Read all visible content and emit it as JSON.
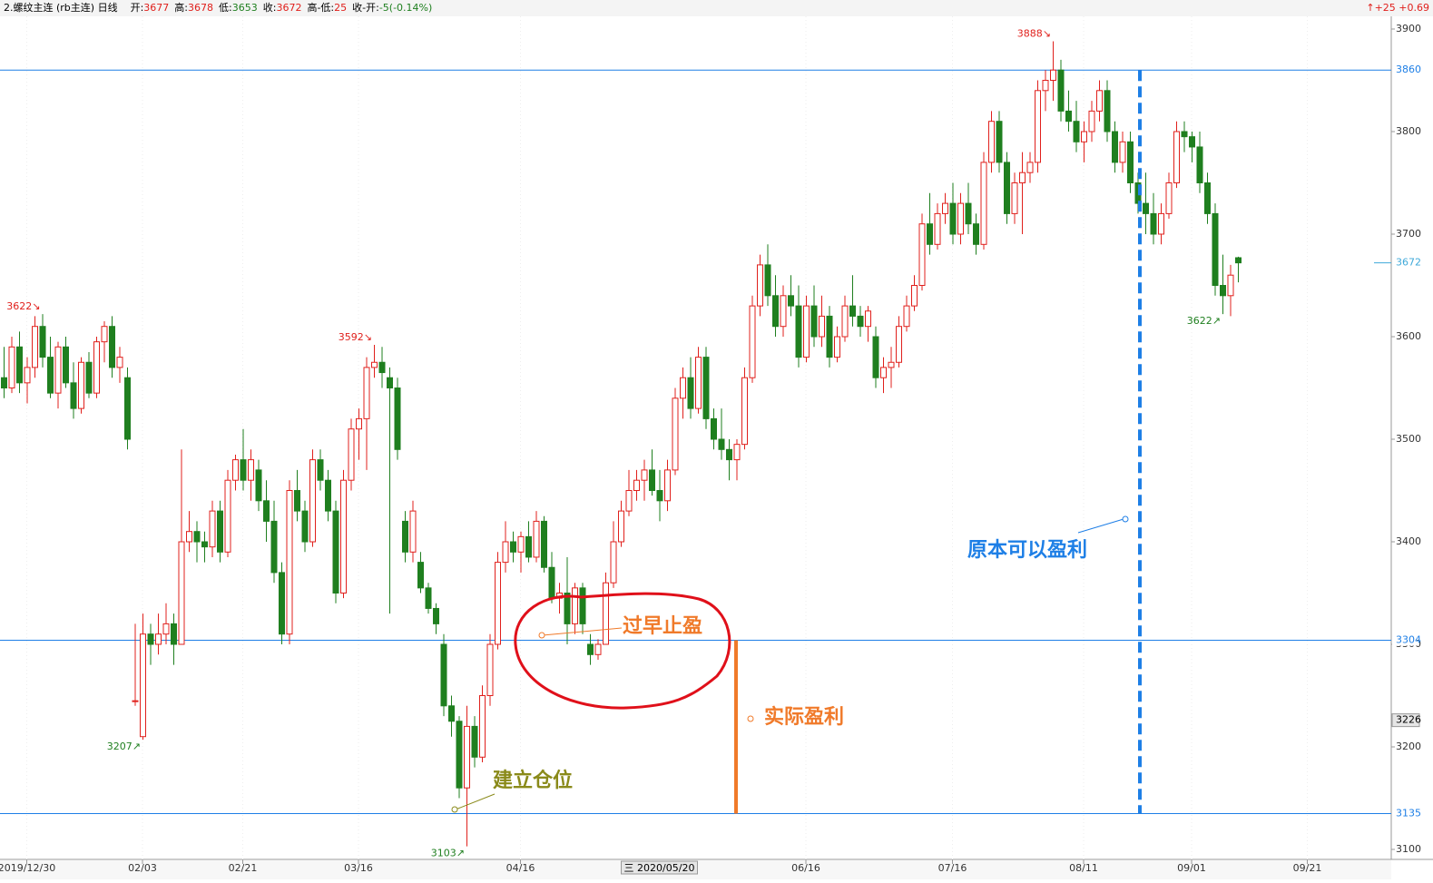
{
  "chart_data": {
    "type": "candlestick",
    "header": {
      "symbol": "2.螺纹主连 (rb主连) 日线",
      "fields": [
        {
          "label": "开:",
          "value": 3677
        },
        {
          "label": "高:",
          "value": 3678
        },
        {
          "label": "低:",
          "value": 3653
        },
        {
          "label": "收:",
          "value": 3672
        },
        {
          "label": "高-低:",
          "value": 25
        },
        {
          "label": "收-开:",
          "value": "-5(-0.14%)"
        }
      ],
      "right": "↑+25 +0.69"
    },
    "up_color": "#e0201c",
    "down_color": "#1f7f1f",
    "ylim": [
      3100,
      3900
    ],
    "yticks": [
      3100,
      3200,
      3300,
      3400,
      3500,
      3600,
      3700,
      3800,
      3900
    ],
    "xlim": [
      0,
      179
    ],
    "xticks": [
      {
        "value": 3,
        "label": "2019/12/30"
      },
      {
        "value": 18,
        "label": "02/03"
      },
      {
        "value": 31,
        "label": "02/21"
      },
      {
        "value": 46,
        "label": "03/16"
      },
      {
        "value": 67,
        "label": "04/16"
      },
      {
        "value": 104,
        "label": "06/16"
      },
      {
        "value": 123,
        "label": "07/16"
      },
      {
        "value": 140,
        "label": "08/11"
      },
      {
        "value": 154,
        "label": "09/01"
      },
      {
        "value": 169,
        "label": "09/21"
      }
    ],
    "cursor": {
      "value": 85,
      "label": "三 2020/05/20"
    },
    "hlines": [
      3860,
      3304,
      3135
    ],
    "hline_color": "#1e7fe6",
    "last_price": 3672,
    "marker_price": 3226,
    "extremes": [
      {
        "x": 5,
        "value": 3622,
        "label": "3622↘",
        "kind": "high"
      },
      {
        "x": 18,
        "value": 3207,
        "label": "3207↗",
        "kind": "low"
      },
      {
        "x": 48,
        "value": 3592,
        "label": "3592↘",
        "kind": "high"
      },
      {
        "x": 60,
        "value": 3103,
        "label": "3103↗",
        "kind": "low"
      },
      {
        "x": 136,
        "value": 3888,
        "label": "3888↘",
        "kind": "high"
      },
      {
        "x": 158,
        "value": 3622,
        "label": "3622↗",
        "kind": "low"
      }
    ],
    "annotations": {
      "early": "过早止盈",
      "actual": "实际盈利",
      "entry": "建立仓位",
      "potential": "原本可以盈利"
    },
    "ohlc": [
      [
        3560,
        3590,
        3540,
        3550
      ],
      [
        3550,
        3600,
        3545,
        3590
      ],
      [
        3590,
        3605,
        3545,
        3555
      ],
      [
        3555,
        3580,
        3535,
        3570
      ],
      [
        3570,
        3620,
        3560,
        3610
      ],
      [
        3610,
        3622,
        3570,
        3580
      ],
      [
        3580,
        3600,
        3540,
        3545
      ],
      [
        3545,
        3595,
        3530,
        3590
      ],
      [
        3590,
        3600,
        3550,
        3555
      ],
      [
        3555,
        3575,
        3520,
        3530
      ],
      [
        3530,
        3580,
        3525,
        3575
      ],
      [
        3575,
        3585,
        3540,
        3545
      ],
      [
        3545,
        3600,
        3540,
        3595
      ],
      [
        3595,
        3615,
        3575,
        3610
      ],
      [
        3610,
        3620,
        3560,
        3570
      ],
      [
        3570,
        3590,
        3555,
        3580
      ],
      [
        3560,
        3570,
        3490,
        3500
      ],
      [
        3245,
        3320,
        3240,
        3245
      ],
      [
        3210,
        3330,
        3207,
        3310
      ],
      [
        3310,
        3320,
        3280,
        3300
      ],
      [
        3300,
        3330,
        3290,
        3310
      ],
      [
        3310,
        3340,
        3300,
        3320
      ],
      [
        3320,
        3330,
        3280,
        3300
      ],
      [
        3300,
        3490,
        3300,
        3400
      ],
      [
        3400,
        3430,
        3390,
        3410
      ],
      [
        3410,
        3420,
        3380,
        3400
      ],
      [
        3400,
        3410,
        3380,
        3395
      ],
      [
        3395,
        3440,
        3385,
        3430
      ],
      [
        3430,
        3440,
        3380,
        3390
      ],
      [
        3390,
        3470,
        3385,
        3460
      ],
      [
        3460,
        3485,
        3450,
        3480
      ],
      [
        3480,
        3510,
        3450,
        3460
      ],
      [
        3460,
        3490,
        3440,
        3480
      ],
      [
        3470,
        3480,
        3430,
        3440
      ],
      [
        3440,
        3460,
        3400,
        3420
      ],
      [
        3420,
        3440,
        3360,
        3370
      ],
      [
        3370,
        3380,
        3300,
        3310
      ],
      [
        3310,
        3460,
        3300,
        3450
      ],
      [
        3450,
        3470,
        3420,
        3430
      ],
      [
        3430,
        3440,
        3390,
        3400
      ],
      [
        3400,
        3490,
        3395,
        3480
      ],
      [
        3480,
        3490,
        3450,
        3460
      ],
      [
        3460,
        3470,
        3420,
        3430
      ],
      [
        3430,
        3440,
        3340,
        3350
      ],
      [
        3350,
        3470,
        3345,
        3460
      ],
      [
        3460,
        3520,
        3450,
        3510
      ],
      [
        3510,
        3530,
        3480,
        3520
      ],
      [
        3520,
        3580,
        3470,
        3570
      ],
      [
        3570,
        3592,
        3560,
        3575
      ],
      [
        3575,
        3590,
        3550,
        3565
      ],
      [
        3560,
        3570,
        3330,
        3550
      ],
      [
        3550,
        3560,
        3480,
        3490
      ],
      [
        3420,
        3430,
        3380,
        3390
      ],
      [
        3390,
        3440,
        3380,
        3430
      ],
      [
        3380,
        3390,
        3350,
        3355
      ],
      [
        3355,
        3360,
        3330,
        3335
      ],
      [
        3335,
        3340,
        3310,
        3320
      ],
      [
        3300,
        3310,
        3230,
        3240
      ],
      [
        3240,
        3250,
        3210,
        3225
      ],
      [
        3225,
        3230,
        3150,
        3160
      ],
      [
        3160,
        3240,
        3103,
        3220
      ],
      [
        3220,
        3230,
        3180,
        3190
      ],
      [
        3190,
        3260,
        3185,
        3250
      ],
      [
        3250,
        3310,
        3240,
        3300
      ],
      [
        3300,
        3390,
        3295,
        3380
      ],
      [
        3380,
        3420,
        3370,
        3400
      ],
      [
        3400,
        3410,
        3380,
        3390
      ],
      [
        3390,
        3410,
        3370,
        3405
      ],
      [
        3405,
        3420,
        3380,
        3385
      ],
      [
        3385,
        3430,
        3380,
        3420
      ],
      [
        3420,
        3425,
        3370,
        3375
      ],
      [
        3375,
        3390,
        3340,
        3345
      ],
      [
        3345,
        3360,
        3330,
        3350
      ],
      [
        3350,
        3385,
        3300,
        3320
      ],
      [
        3320,
        3360,
        3310,
        3355
      ],
      [
        3355,
        3360,
        3310,
        3320
      ],
      [
        3300,
        3310,
        3280,
        3290
      ],
      [
        3290,
        3305,
        3285,
        3300
      ],
      [
        3300,
        3370,
        3300,
        3360
      ],
      [
        3360,
        3420,
        3355,
        3400
      ],
      [
        3400,
        3440,
        3395,
        3430
      ],
      [
        3430,
        3470,
        3425,
        3450
      ],
      [
        3450,
        3470,
        3440,
        3460
      ],
      [
        3460,
        3480,
        3440,
        3470
      ],
      [
        3470,
        3490,
        3445,
        3450
      ],
      [
        3450,
        3470,
        3420,
        3440
      ],
      [
        3440,
        3480,
        3430,
        3470
      ],
      [
        3470,
        3550,
        3465,
        3540
      ],
      [
        3540,
        3570,
        3520,
        3560
      ],
      [
        3560,
        3580,
        3520,
        3530
      ],
      [
        3530,
        3590,
        3525,
        3580
      ],
      [
        3580,
        3590,
        3510,
        3520
      ],
      [
        3520,
        3530,
        3490,
        3500
      ],
      [
        3500,
        3530,
        3480,
        3490
      ],
      [
        3490,
        3500,
        3460,
        3480
      ],
      [
        3480,
        3500,
        3460,
        3495
      ],
      [
        3495,
        3570,
        3490,
        3560
      ],
      [
        3560,
        3640,
        3555,
        3630
      ],
      [
        3630,
        3680,
        3620,
        3670
      ],
      [
        3670,
        3690,
        3630,
        3640
      ],
      [
        3640,
        3660,
        3600,
        3610
      ],
      [
        3610,
        3650,
        3600,
        3640
      ],
      [
        3640,
        3660,
        3620,
        3630
      ],
      [
        3630,
        3650,
        3570,
        3580
      ],
      [
        3580,
        3640,
        3575,
        3630
      ],
      [
        3630,
        3650,
        3590,
        3600
      ],
      [
        3600,
        3640,
        3590,
        3620
      ],
      [
        3620,
        3630,
        3570,
        3580
      ],
      [
        3580,
        3610,
        3575,
        3600
      ],
      [
        3600,
        3640,
        3595,
        3630
      ],
      [
        3630,
        3660,
        3610,
        3620
      ],
      [
        3620,
        3630,
        3600,
        3610
      ],
      [
        3610,
        3630,
        3595,
        3625
      ],
      [
        3600,
        3610,
        3550,
        3560
      ],
      [
        3560,
        3580,
        3545,
        3570
      ],
      [
        3570,
        3590,
        3550,
        3575
      ],
      [
        3575,
        3620,
        3570,
        3610
      ],
      [
        3610,
        3640,
        3605,
        3630
      ],
      [
        3630,
        3660,
        3625,
        3650
      ],
      [
        3650,
        3720,
        3645,
        3710
      ],
      [
        3710,
        3740,
        3680,
        3690
      ],
      [
        3690,
        3730,
        3685,
        3720
      ],
      [
        3720,
        3740,
        3710,
        3730
      ],
      [
        3730,
        3750,
        3690,
        3700
      ],
      [
        3700,
        3740,
        3690,
        3730
      ],
      [
        3730,
        3750,
        3700,
        3710
      ],
      [
        3710,
        3720,
        3680,
        3690
      ],
      [
        3690,
        3780,
        3685,
        3770
      ],
      [
        3770,
        3820,
        3760,
        3810
      ],
      [
        3810,
        3820,
        3760,
        3770
      ],
      [
        3770,
        3780,
        3710,
        3720
      ],
      [
        3720,
        3760,
        3710,
        3750
      ],
      [
        3750,
        3780,
        3700,
        3760
      ],
      [
        3760,
        3780,
        3750,
        3770
      ],
      [
        3770,
        3850,
        3760,
        3840
      ],
      [
        3840,
        3860,
        3820,
        3850
      ],
      [
        3850,
        3888,
        3830,
        3860
      ],
      [
        3860,
        3870,
        3810,
        3820
      ],
      [
        3820,
        3840,
        3800,
        3810
      ],
      [
        3810,
        3830,
        3780,
        3790
      ],
      [
        3790,
        3810,
        3770,
        3800
      ],
      [
        3800,
        3830,
        3790,
        3820
      ],
      [
        3820,
        3850,
        3810,
        3840
      ],
      [
        3840,
        3850,
        3790,
        3800
      ],
      [
        3800,
        3810,
        3760,
        3770
      ],
      [
        3770,
        3800,
        3760,
        3790
      ],
      [
        3790,
        3800,
        3740,
        3750
      ],
      [
        3750,
        3760,
        3720,
        3730
      ],
      [
        3730,
        3760,
        3700,
        3720
      ],
      [
        3720,
        3740,
        3690,
        3700
      ],
      [
        3700,
        3730,
        3690,
        3720
      ],
      [
        3720,
        3760,
        3715,
        3750
      ],
      [
        3750,
        3810,
        3745,
        3800
      ],
      [
        3800,
        3810,
        3780,
        3795
      ],
      [
        3795,
        3800,
        3770,
        3785
      ],
      [
        3785,
        3800,
        3740,
        3750
      ],
      [
        3750,
        3760,
        3710,
        3720
      ],
      [
        3720,
        3730,
        3640,
        3650
      ],
      [
        3650,
        3680,
        3622,
        3640
      ],
      [
        3640,
        3670,
        3620,
        3660
      ],
      [
        3677,
        3678,
        3653,
        3672
      ]
    ]
  }
}
